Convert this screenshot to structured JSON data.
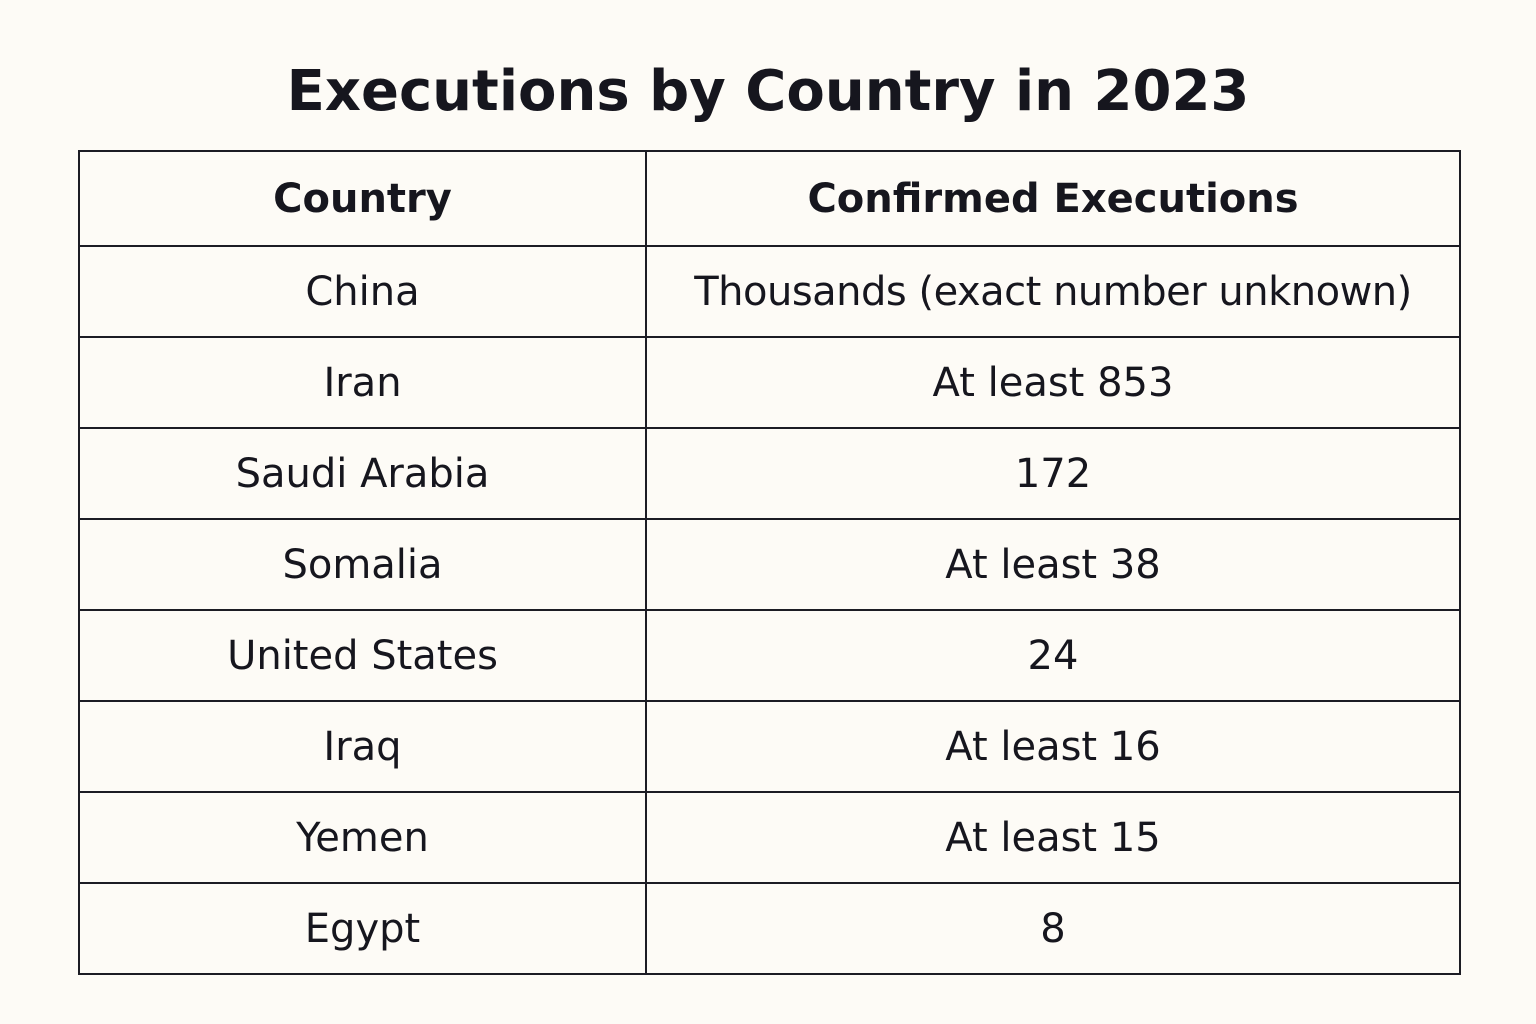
{
  "chart_data": {
    "type": "table",
    "title": "Executions by Country in 2023",
    "columns": [
      "Country",
      "Confirmed Executions"
    ],
    "rows": [
      {
        "country": "China",
        "executions": "Thousands (exact number unknown)"
      },
      {
        "country": "Iran",
        "executions": "At least 853"
      },
      {
        "country": "Saudi Arabia",
        "executions": "172"
      },
      {
        "country": "Somalia",
        "executions": "At least 38"
      },
      {
        "country": "United States",
        "executions": "24"
      },
      {
        "country": "Iraq",
        "executions": "At least 16"
      },
      {
        "country": "Yemen",
        "executions": "At least 15"
      },
      {
        "country": "Egypt",
        "executions": "8"
      }
    ]
  }
}
